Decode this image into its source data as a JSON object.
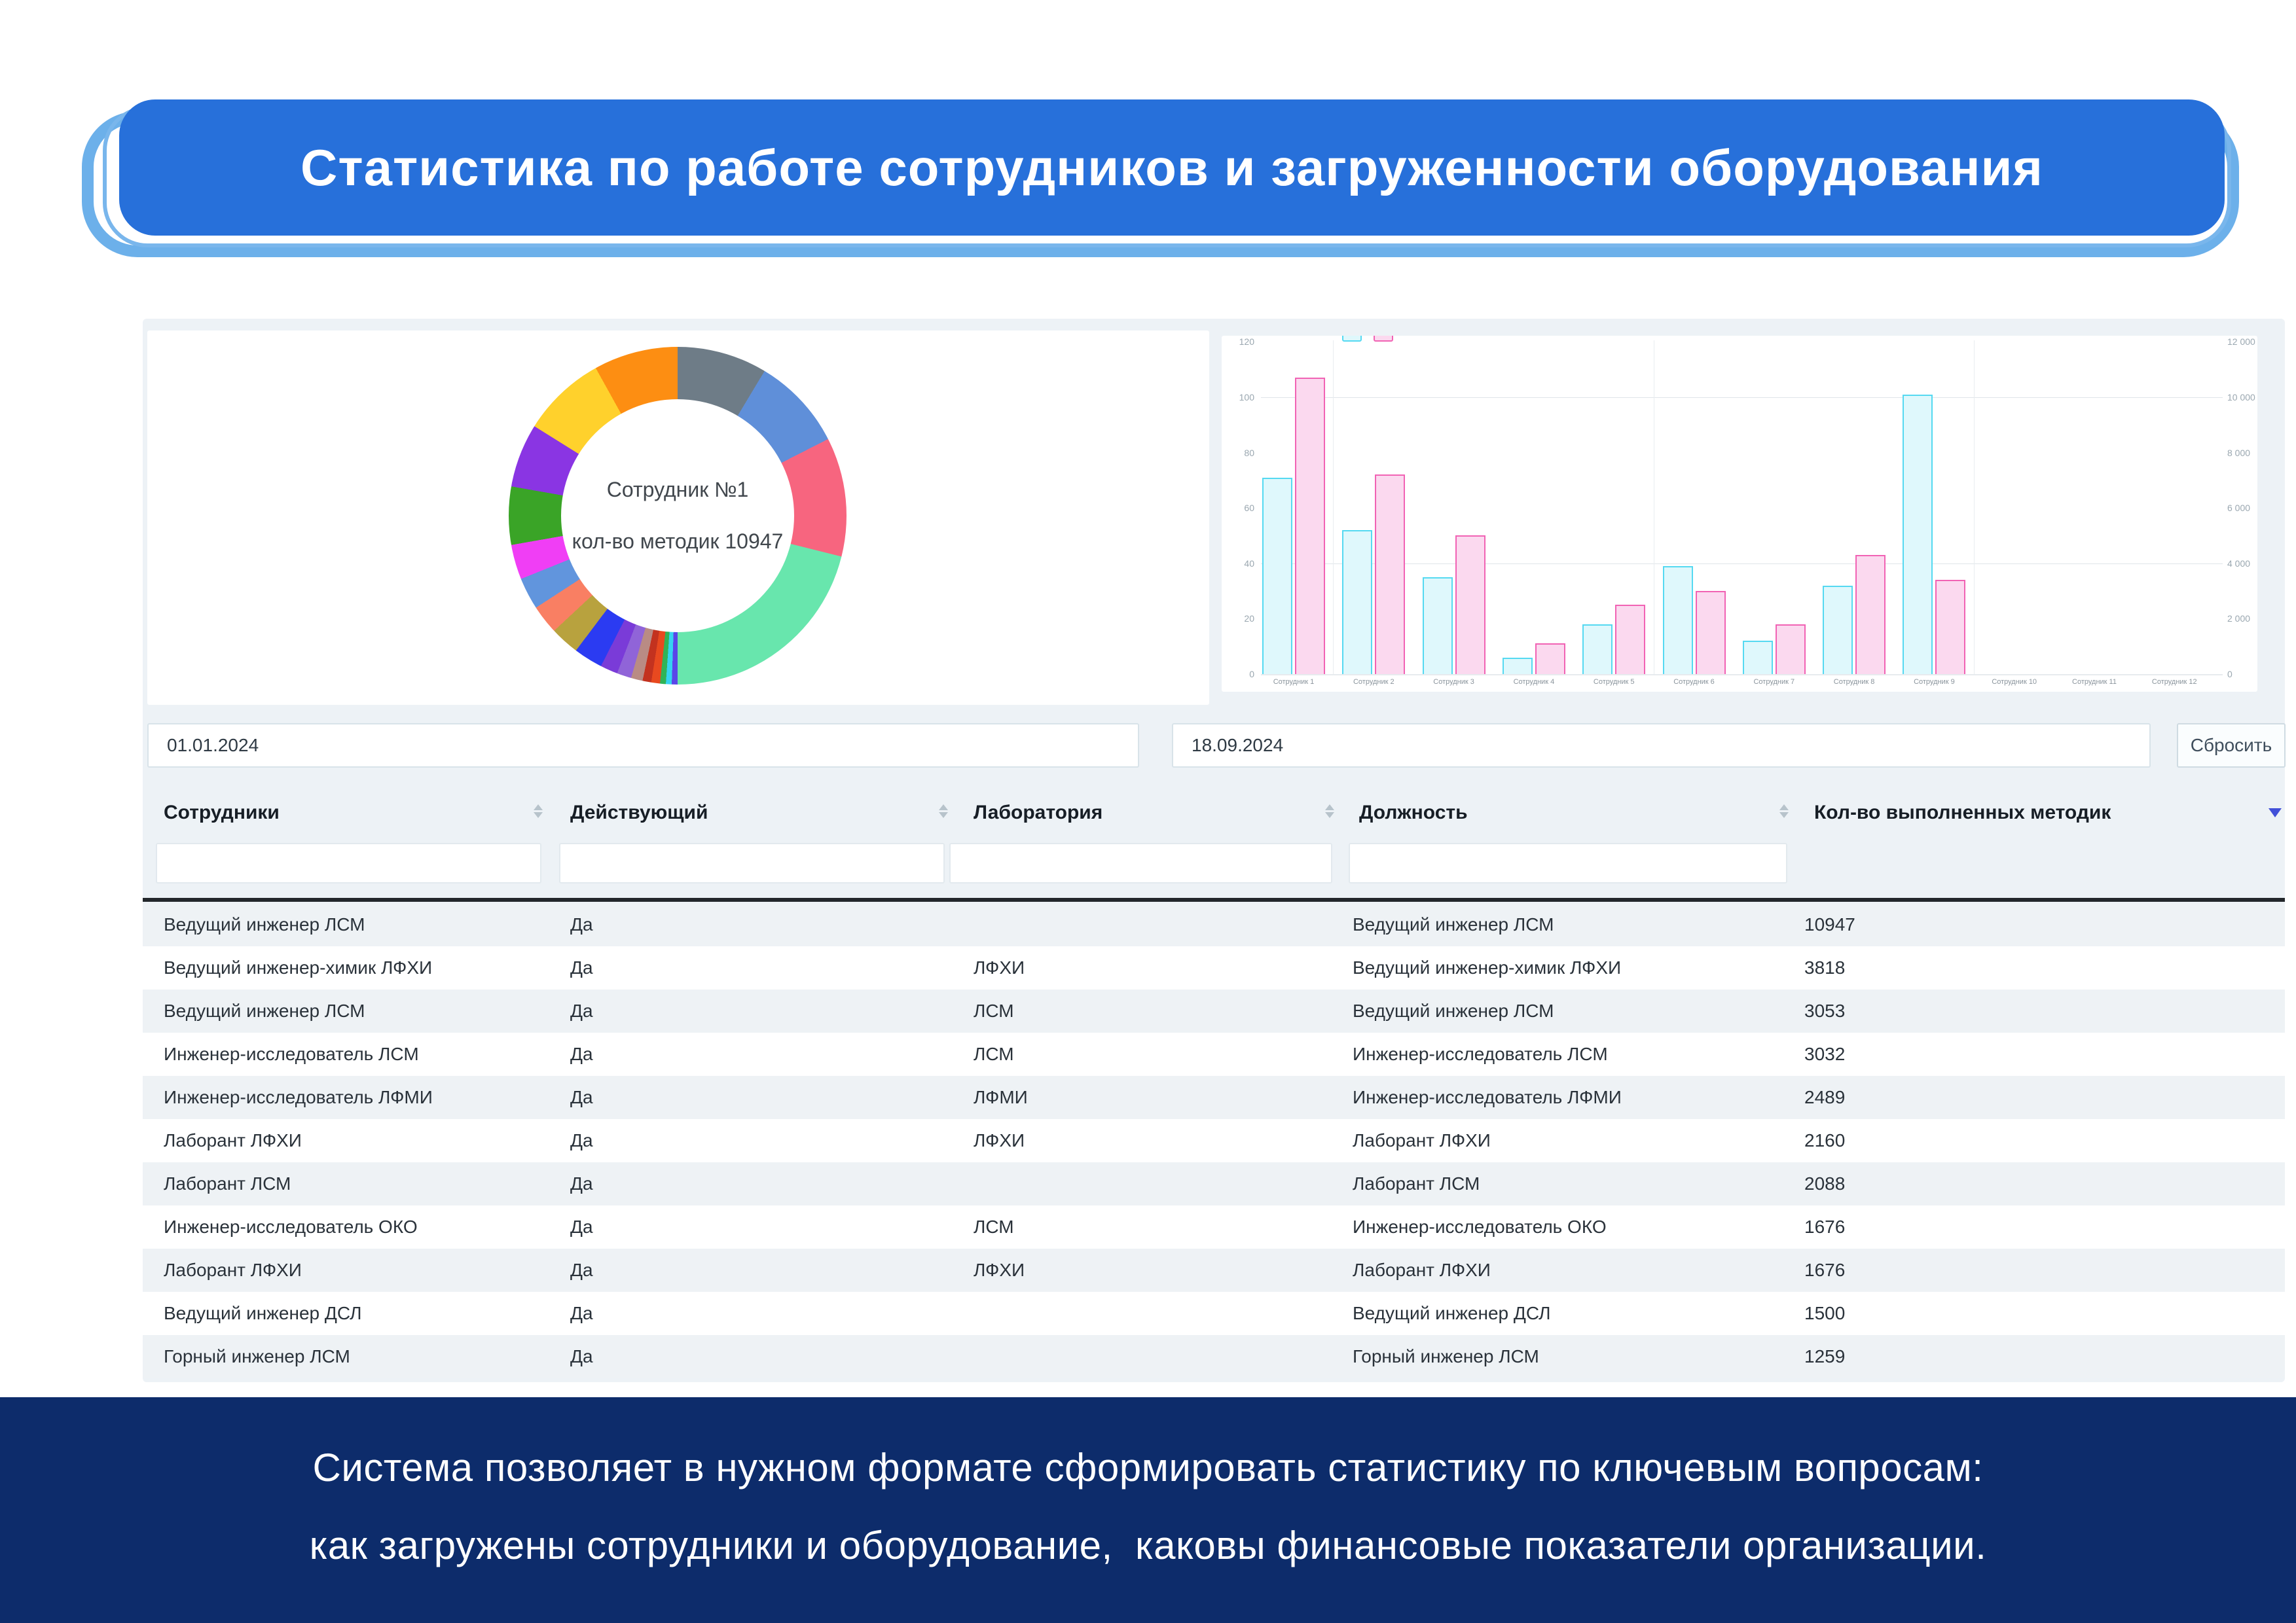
{
  "banner": {
    "title": "Статистика по работе сотрудников и загруженности оборудования"
  },
  "chart_data": {
    "donut": {
      "type": "pie",
      "center_line1": "Сотрудник №1",
      "center_line2": "кол-во методик 10947",
      "segments": [
        {
          "name": "segment-1",
          "color": "#6e7c87",
          "start": 0,
          "end": 31
        },
        {
          "name": "segment-2",
          "color": "#5f8fd9",
          "start": 31,
          "end": 63
        },
        {
          "name": "segment-3",
          "color": "#f7657f",
          "start": 63,
          "end": 104
        },
        {
          "name": "segment-4",
          "color": "#68e6ad",
          "start": 104,
          "end": 180
        },
        {
          "name": "segment-5",
          "color": "#5a46e8",
          "start": 180,
          "end": 182
        },
        {
          "name": "segment-6",
          "color": "#35d3f0",
          "start": 182,
          "end": 184
        },
        {
          "name": "segment-7",
          "color": "#2fb457",
          "start": 184,
          "end": 186
        },
        {
          "name": "segment-8",
          "color": "#e8491f",
          "start": 186,
          "end": 189
        },
        {
          "name": "segment-9",
          "color": "#c3321f",
          "start": 189,
          "end": 192
        },
        {
          "name": "segment-10",
          "color": "#b98b84",
          "start": 192,
          "end": 196
        },
        {
          "name": "segment-11",
          "color": "#9064d8",
          "start": 196,
          "end": 201
        },
        {
          "name": "segment-12",
          "color": "#7a3bd8",
          "start": 201,
          "end": 207
        },
        {
          "name": "segment-13",
          "color": "#2b3bf2",
          "start": 207,
          "end": 217
        },
        {
          "name": "segment-14",
          "color": "#b8a23e",
          "start": 217,
          "end": 227
        },
        {
          "name": "segment-15",
          "color": "#f97f63",
          "start": 227,
          "end": 237
        },
        {
          "name": "segment-16",
          "color": "#6195dd",
          "start": 237,
          "end": 248
        },
        {
          "name": "segment-17",
          "color": "#f03ef5",
          "start": 248,
          "end": 260
        },
        {
          "name": "segment-18",
          "color": "#3aa427",
          "start": 260,
          "end": 280
        },
        {
          "name": "segment-19",
          "color": "#8a35e3",
          "start": 280,
          "end": 302
        },
        {
          "name": "segment-20",
          "color": "#ffd12c",
          "start": 302,
          "end": 331
        },
        {
          "name": "segment-21",
          "color": "#fd8e12",
          "start": 331,
          "end": 360
        }
      ]
    },
    "bars": {
      "type": "bar",
      "categories": [
        "Сотрудник 1",
        "Сотрудник 2",
        "Сотрудник 3",
        "Сотрудник 4",
        "Сотрудник 5",
        "Сотрудник 6",
        "Сотрудник 7",
        "Сотрудник 8",
        "Сотрудник 9",
        "Сотрудник 10",
        "Сотрудник 11",
        "Сотрудник 12"
      ],
      "series": [
        {
          "id": "series-a",
          "fill": "#dff8fc",
          "stroke": "#55d9f1",
          "values": [
            71,
            52,
            35,
            6,
            18,
            39,
            12,
            32,
            101,
            0,
            0,
            0
          ]
        },
        {
          "id": "series-b",
          "fill": "#fbd9ef",
          "stroke": "#f163b4",
          "values": [
            107,
            72,
            50,
            11,
            25,
            30,
            18,
            43,
            34,
            0,
            0,
            0
          ]
        }
      ],
      "axis_max": 120,
      "left_axis_ticks": [
        "120",
        "100",
        "80",
        "60",
        "40",
        "20",
        "0"
      ],
      "left_axis_tick_values": [
        120,
        100,
        80,
        60,
        40,
        20,
        0
      ],
      "right_axis_ticks": [
        "12 000",
        "10 000",
        "8 000",
        "6 000",
        "4 000",
        "2 000",
        "0"
      ],
      "gridlines_at": [
        100,
        40
      ],
      "legend_position": "top"
    }
  },
  "filters": {
    "date_from": "01.01.2024",
    "date_to": "18.09.2024",
    "reset_label": "Сбросить"
  },
  "table": {
    "columns": [
      {
        "label": "Сотрудники",
        "sortable": true,
        "has_filter": true
      },
      {
        "label": "Действующий",
        "sortable": true,
        "has_filter": true
      },
      {
        "label": "Лаборатория",
        "sortable": true,
        "has_filter": true
      },
      {
        "label": "Должность",
        "sortable": true,
        "has_filter": true
      },
      {
        "label": "Кол-во выполненных методик",
        "sortable": false,
        "has_filter": false
      }
    ],
    "rows": [
      [
        "Ведущий инженер ЛСМ",
        "Да",
        "",
        "Ведущий инженер ЛСМ",
        "10947"
      ],
      [
        "Ведущий инженер-химик ЛФХИ",
        "Да",
        "ЛФХИ",
        "Ведущий инженер-химик ЛФХИ",
        "3818"
      ],
      [
        "Ведущий инженер ЛСМ",
        "Да",
        "ЛСМ",
        "Ведущий инженер ЛСМ",
        "3053"
      ],
      [
        "Инженер-исследователь ЛСМ",
        "Да",
        "ЛСМ",
        "Инженер-исследователь ЛСМ",
        "3032"
      ],
      [
        "Инженер-исследователь ЛФМИ",
        "Да",
        "ЛФМИ",
        "Инженер-исследователь ЛФМИ",
        "2489"
      ],
      [
        "Лаборант ЛФХИ",
        "Да",
        "ЛФХИ",
        "Лаборант ЛФХИ",
        "2160"
      ],
      [
        "Лаборант ЛСМ",
        "Да",
        "",
        "Лаборант ЛСМ",
        "2088"
      ],
      [
        "Инженер-исследователь ОКО",
        "Да",
        "ЛСМ",
        "Инженер-исследователь ОКО",
        "1676"
      ],
      [
        "Лаборант ЛФХИ",
        "Да",
        "ЛФХИ",
        "Лаборант ЛФХИ",
        "1676"
      ],
      [
        "Ведущий инженер ДСЛ",
        "Да",
        "",
        "Ведущий инженер ДСЛ",
        "1500"
      ],
      [
        "Горный инженер ЛСМ",
        "Да",
        "",
        "Горный инженер ЛСМ",
        "1259"
      ]
    ]
  },
  "footer": {
    "line1": "Система позволяет в нужном формате сформировать статистику по ключевым вопросам:",
    "line2": "как загружены сотрудники и оборудование,  каковы финансовые показатели организации."
  }
}
